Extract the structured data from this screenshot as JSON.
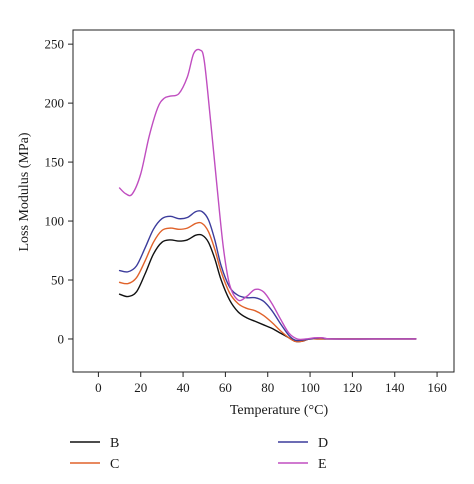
{
  "chart_data": {
    "type": "line",
    "xlabel": "Temperature (°C)",
    "ylabel": "Loss Modulus (MPa)",
    "xlim": [
      -12,
      168
    ],
    "ylim": [
      -28,
      262
    ],
    "xticks": [
      0,
      20,
      40,
      60,
      80,
      100,
      120,
      140,
      160
    ],
    "yticks": [
      0,
      50,
      100,
      150,
      200,
      250
    ],
    "grid": false,
    "legend_position": "bottom",
    "series": [
      {
        "name": "B",
        "color": "#111111",
        "points": [
          [
            10,
            38
          ],
          [
            14,
            36
          ],
          [
            18,
            40
          ],
          [
            22,
            55
          ],
          [
            26,
            72
          ],
          [
            30,
            82
          ],
          [
            34,
            84
          ],
          [
            38,
            83
          ],
          [
            42,
            84
          ],
          [
            46,
            88
          ],
          [
            49,
            88
          ],
          [
            52,
            82
          ],
          [
            55,
            68
          ],
          [
            58,
            50
          ],
          [
            62,
            33
          ],
          [
            66,
            23
          ],
          [
            70,
            18
          ],
          [
            74,
            15
          ],
          [
            78,
            12
          ],
          [
            82,
            9
          ],
          [
            86,
            5
          ],
          [
            90,
            1
          ],
          [
            93,
            -2
          ],
          [
            96,
            -2
          ],
          [
            100,
            0
          ],
          [
            105,
            0
          ],
          [
            110,
            0
          ],
          [
            130,
            0
          ],
          [
            150,
            0
          ]
        ]
      },
      {
        "name": "C",
        "color": "#e0622a",
        "points": [
          [
            10,
            48
          ],
          [
            14,
            47
          ],
          [
            18,
            52
          ],
          [
            22,
            66
          ],
          [
            26,
            82
          ],
          [
            30,
            92
          ],
          [
            34,
            94
          ],
          [
            38,
            93
          ],
          [
            42,
            94
          ],
          [
            46,
            98
          ],
          [
            49,
            98
          ],
          [
            52,
            91
          ],
          [
            55,
            76
          ],
          [
            58,
            57
          ],
          [
            62,
            39
          ],
          [
            66,
            30
          ],
          [
            70,
            26
          ],
          [
            74,
            24
          ],
          [
            78,
            20
          ],
          [
            82,
            14
          ],
          [
            86,
            7
          ],
          [
            90,
            1
          ],
          [
            93,
            -2
          ],
          [
            96,
            -2
          ],
          [
            100,
            0
          ],
          [
            105,
            0
          ],
          [
            110,
            0
          ],
          [
            130,
            0
          ],
          [
            150,
            0
          ]
        ]
      },
      {
        "name": "D",
        "color": "#3c3c9c",
        "points": [
          [
            10,
            58
          ],
          [
            14,
            57
          ],
          [
            18,
            62
          ],
          [
            22,
            77
          ],
          [
            26,
            93
          ],
          [
            30,
            102
          ],
          [
            34,
            104
          ],
          [
            38,
            102
          ],
          [
            42,
            103
          ],
          [
            46,
            108
          ],
          [
            49,
            108
          ],
          [
            52,
            101
          ],
          [
            55,
            84
          ],
          [
            58,
            62
          ],
          [
            62,
            44
          ],
          [
            66,
            37
          ],
          [
            70,
            35
          ],
          [
            74,
            35
          ],
          [
            78,
            32
          ],
          [
            82,
            24
          ],
          [
            86,
            13
          ],
          [
            90,
            3
          ],
          [
            93,
            -1
          ],
          [
            96,
            -1
          ],
          [
            100,
            0
          ],
          [
            105,
            1
          ],
          [
            110,
            0
          ],
          [
            130,
            0
          ],
          [
            150,
            0
          ]
        ]
      },
      {
        "name": "E",
        "color": "#c04ec0",
        "points": [
          [
            10,
            128
          ],
          [
            13,
            123
          ],
          [
            16,
            123
          ],
          [
            20,
            140
          ],
          [
            24,
            172
          ],
          [
            28,
            196
          ],
          [
            31,
            204
          ],
          [
            34,
            206
          ],
          [
            38,
            208
          ],
          [
            42,
            222
          ],
          [
            45,
            242
          ],
          [
            48,
            245
          ],
          [
            50,
            236
          ],
          [
            53,
            185
          ],
          [
            56,
            130
          ],
          [
            59,
            78
          ],
          [
            62,
            46
          ],
          [
            66,
            33
          ],
          [
            70,
            36
          ],
          [
            74,
            42
          ],
          [
            78,
            40
          ],
          [
            82,
            30
          ],
          [
            86,
            17
          ],
          [
            90,
            5
          ],
          [
            94,
            0
          ],
          [
            98,
            0
          ],
          [
            102,
            1
          ],
          [
            106,
            1
          ],
          [
            110,
            0
          ],
          [
            130,
            0
          ],
          [
            150,
            0
          ]
        ]
      }
    ]
  }
}
